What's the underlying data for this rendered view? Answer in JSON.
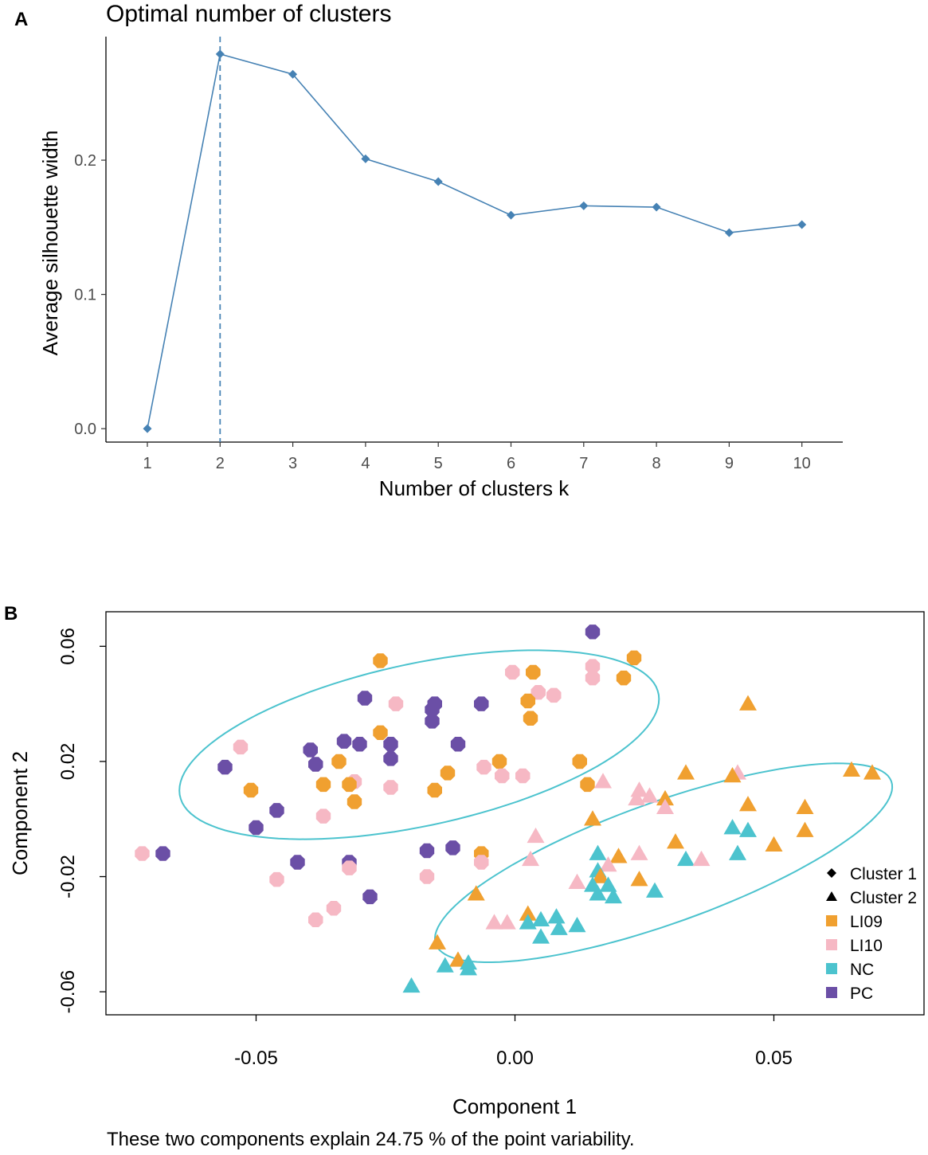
{
  "chart_data": [
    {
      "panel": "A",
      "type": "line",
      "title": "Optimal number of clusters",
      "xlabel": "Number of clusters k",
      "ylabel": "Average silhouette width",
      "categories": [
        "1",
        "2",
        "3",
        "4",
        "5",
        "6",
        "7",
        "8",
        "9",
        "10"
      ],
      "values": [
        0.0,
        0.279,
        0.264,
        0.201,
        0.184,
        0.159,
        0.166,
        0.165,
        0.146,
        0.152
      ],
      "yticks": [
        0.0,
        0.1,
        0.2
      ],
      "ytick_labels": [
        "0.0",
        "0.1",
        "0.2"
      ],
      "ylim": [
        -0.01,
        0.292
      ],
      "optimal_k": 2,
      "color": "#4682B4"
    },
    {
      "panel": "B",
      "type": "scatter",
      "xlabel": "Component 1",
      "ylabel": "Component 2",
      "caption": "These two components explain 24.75 % of the point variability.",
      "xlim": [
        -0.079,
        0.079
      ],
      "ylim": [
        -0.068,
        0.072
      ],
      "xticks": [
        -0.05,
        0.0,
        0.05
      ],
      "xtick_labels": [
        "-0.05",
        "0.00",
        "0.05"
      ],
      "yticks": [
        0.06,
        0.02,
        -0.02,
        -0.06
      ],
      "ytick_labels": [
        "0.06",
        "0.02",
        "-0.02",
        "-0.06"
      ],
      "legend_position": "right",
      "legend": [
        {
          "label": "Cluster 1",
          "symbol": "diamond"
        },
        {
          "label": "Cluster 2",
          "symbol": "triangle"
        },
        {
          "label": "LI09",
          "color": "#F0A030"
        },
        {
          "label": "LI10",
          "color": "#F6B8C4"
        },
        {
          "label": "NC",
          "color": "#4CC3CE"
        },
        {
          "label": "PC",
          "color": "#6B4FA6"
        }
      ],
      "groups": {
        "LI09": "#F0A030",
        "LI10": "#F6B8C4",
        "NC": "#4CC3CE",
        "PC": "#6B4FA6"
      },
      "ellipses": [
        {
          "cluster": "Cluster 1",
          "center": [
            -0.0185,
            0.0258
          ],
          "semi_axes": [
            0.0502,
            0.0265
          ],
          "angle_deg": 27,
          "color": "#4CC3CE"
        },
        {
          "cluster": "Cluster 2",
          "center": [
            0.0287,
            -0.0152
          ],
          "semi_axes": [
            0.0529,
            0.0186
          ],
          "angle_deg": 36,
          "color": "#4CC3CE"
        }
      ],
      "points": [
        {
          "x": 0.015,
          "y": 0.065,
          "group": "PC",
          "cluster": 1
        },
        {
          "x": -0.026,
          "y": 0.055,
          "group": "LI09",
          "cluster": 1
        },
        {
          "x": 0.023,
          "y": 0.056,
          "group": "LI09",
          "cluster": 1
        },
        {
          "x": 0.015,
          "y": 0.053,
          "group": "LI10",
          "cluster": 1
        },
        {
          "x": 0.015,
          "y": 0.049,
          "group": "LI10",
          "cluster": 1
        },
        {
          "x": 0.021,
          "y": 0.049,
          "group": "LI09",
          "cluster": 1
        },
        {
          "x": -0.0005,
          "y": 0.051,
          "group": "LI10",
          "cluster": 1
        },
        {
          "x": 0.0035,
          "y": 0.051,
          "group": "LI09",
          "cluster": 1
        },
        {
          "x": 0.0045,
          "y": 0.044,
          "group": "LI10",
          "cluster": 1
        },
        {
          "x": 0.0075,
          "y": 0.043,
          "group": "LI10",
          "cluster": 1
        },
        {
          "x": 0.0025,
          "y": 0.041,
          "group": "LI09",
          "cluster": 1
        },
        {
          "x": 0.003,
          "y": 0.035,
          "group": "LI09",
          "cluster": 1
        },
        {
          "x": -0.029,
          "y": 0.042,
          "group": "PC",
          "cluster": 1
        },
        {
          "x": -0.023,
          "y": 0.04,
          "group": "LI10",
          "cluster": 1
        },
        {
          "x": -0.0155,
          "y": 0.04,
          "group": "PC",
          "cluster": 1
        },
        {
          "x": -0.0065,
          "y": 0.04,
          "group": "PC",
          "cluster": 1
        },
        {
          "x": -0.016,
          "y": 0.038,
          "group": "PC",
          "cluster": 1
        },
        {
          "x": -0.016,
          "y": 0.034,
          "group": "PC",
          "cluster": 1
        },
        {
          "x": -0.026,
          "y": 0.03,
          "group": "LI09",
          "cluster": 1
        },
        {
          "x": -0.033,
          "y": 0.027,
          "group": "PC",
          "cluster": 1
        },
        {
          "x": -0.03,
          "y": 0.026,
          "group": "PC",
          "cluster": 1
        },
        {
          "x": -0.024,
          "y": 0.026,
          "group": "PC",
          "cluster": 1
        },
        {
          "x": -0.011,
          "y": 0.026,
          "group": "PC",
          "cluster": 1
        },
        {
          "x": -0.053,
          "y": 0.025,
          "group": "LI10",
          "cluster": 1
        },
        {
          "x": -0.0395,
          "y": 0.024,
          "group": "PC",
          "cluster": 1
        },
        {
          "x": -0.024,
          "y": 0.021,
          "group": "PC",
          "cluster": 1
        },
        {
          "x": -0.034,
          "y": 0.02,
          "group": "LI09",
          "cluster": 1
        },
        {
          "x": -0.0385,
          "y": 0.019,
          "group": "PC",
          "cluster": 1
        },
        {
          "x": -0.056,
          "y": 0.018,
          "group": "PC",
          "cluster": 1
        },
        {
          "x": -0.006,
          "y": 0.018,
          "group": "LI10",
          "cluster": 1
        },
        {
          "x": -0.003,
          "y": 0.02,
          "group": "LI09",
          "cluster": 1
        },
        {
          "x": 0.0125,
          "y": 0.02,
          "group": "LI09",
          "cluster": 1
        },
        {
          "x": -0.013,
          "y": 0.016,
          "group": "LI09",
          "cluster": 1
        },
        {
          "x": -0.0025,
          "y": 0.015,
          "group": "LI10",
          "cluster": 1
        },
        {
          "x": 0.0015,
          "y": 0.015,
          "group": "LI10",
          "cluster": 1
        },
        {
          "x": -0.031,
          "y": 0.013,
          "group": "LI10",
          "cluster": 1
        },
        {
          "x": -0.037,
          "y": 0.012,
          "group": "LI09",
          "cluster": 1
        },
        {
          "x": -0.032,
          "y": 0.012,
          "group": "LI09",
          "cluster": 1
        },
        {
          "x": -0.024,
          "y": 0.011,
          "group": "LI10",
          "cluster": 1
        },
        {
          "x": -0.0155,
          "y": 0.01,
          "group": "LI09",
          "cluster": 1
        },
        {
          "x": 0.014,
          "y": 0.012,
          "group": "LI09",
          "cluster": 1
        },
        {
          "x": -0.051,
          "y": 0.01,
          "group": "LI09",
          "cluster": 1
        },
        {
          "x": -0.031,
          "y": 0.006,
          "group": "LI09",
          "cluster": 1
        },
        {
          "x": -0.046,
          "y": 0.003,
          "group": "PC",
          "cluster": 1
        },
        {
          "x": -0.037,
          "y": 0.001,
          "group": "LI10",
          "cluster": 1
        },
        {
          "x": -0.05,
          "y": -0.003,
          "group": "PC",
          "cluster": 1
        },
        {
          "x": -0.072,
          "y": -0.012,
          "group": "LI10",
          "cluster": 1
        },
        {
          "x": -0.068,
          "y": -0.012,
          "group": "PC",
          "cluster": 1
        },
        {
          "x": -0.017,
          "y": -0.011,
          "group": "PC",
          "cluster": 1
        },
        {
          "x": -0.012,
          "y": -0.01,
          "group": "PC",
          "cluster": 1
        },
        {
          "x": -0.0065,
          "y": -0.012,
          "group": "LI09",
          "cluster": 1
        },
        {
          "x": -0.042,
          "y": -0.015,
          "group": "PC",
          "cluster": 1
        },
        {
          "x": -0.032,
          "y": -0.015,
          "group": "PC",
          "cluster": 1
        },
        {
          "x": -0.0065,
          "y": -0.015,
          "group": "LI10",
          "cluster": 1
        },
        {
          "x": -0.032,
          "y": -0.017,
          "group": "LI10",
          "cluster": 1
        },
        {
          "x": -0.046,
          "y": -0.021,
          "group": "LI10",
          "cluster": 1
        },
        {
          "x": -0.017,
          "y": -0.02,
          "group": "LI10",
          "cluster": 1
        },
        {
          "x": -0.028,
          "y": -0.027,
          "group": "PC",
          "cluster": 1
        },
        {
          "x": -0.035,
          "y": -0.031,
          "group": "LI10",
          "cluster": 1
        },
        {
          "x": -0.0385,
          "y": -0.035,
          "group": "LI10",
          "cluster": 1
        },
        {
          "x": 0.045,
          "y": 0.04,
          "group": "LI09",
          "cluster": 2
        },
        {
          "x": 0.065,
          "y": 0.017,
          "group": "LI09",
          "cluster": 2
        },
        {
          "x": 0.069,
          "y": 0.016,
          "group": "LI09",
          "cluster": 2
        },
        {
          "x": 0.033,
          "y": 0.016,
          "group": "LI09",
          "cluster": 2
        },
        {
          "x": 0.043,
          "y": 0.016,
          "group": "LI10",
          "cluster": 2
        },
        {
          "x": 0.042,
          "y": 0.015,
          "group": "LI09",
          "cluster": 2
        },
        {
          "x": 0.026,
          "y": 0.008,
          "group": "LI10",
          "cluster": 2
        },
        {
          "x": 0.017,
          "y": 0.013,
          "group": "LI10",
          "cluster": 2
        },
        {
          "x": 0.024,
          "y": 0.01,
          "group": "LI10",
          "cluster": 2
        },
        {
          "x": 0.0235,
          "y": 0.007,
          "group": "LI10",
          "cluster": 2
        },
        {
          "x": 0.029,
          "y": 0.007,
          "group": "LI09",
          "cluster": 2
        },
        {
          "x": 0.029,
          "y": 0.004,
          "group": "LI10",
          "cluster": 2
        },
        {
          "x": 0.045,
          "y": 0.005,
          "group": "LI09",
          "cluster": 2
        },
        {
          "x": 0.056,
          "y": 0.004,
          "group": "LI09",
          "cluster": 2
        },
        {
          "x": 0.015,
          "y": 0.0,
          "group": "LI09",
          "cluster": 2
        },
        {
          "x": 0.042,
          "y": -0.003,
          "group": "NC",
          "cluster": 2
        },
        {
          "x": 0.045,
          "y": -0.004,
          "group": "NC",
          "cluster": 2
        },
        {
          "x": 0.056,
          "y": -0.004,
          "group": "LI09",
          "cluster": 2
        },
        {
          "x": 0.004,
          "y": -0.006,
          "group": "LI10",
          "cluster": 2
        },
        {
          "x": 0.031,
          "y": -0.008,
          "group": "LI09",
          "cluster": 2
        },
        {
          "x": 0.05,
          "y": -0.009,
          "group": "LI09",
          "cluster": 2
        },
        {
          "x": 0.024,
          "y": -0.012,
          "group": "LI10",
          "cluster": 2
        },
        {
          "x": 0.016,
          "y": -0.012,
          "group": "NC",
          "cluster": 2
        },
        {
          "x": 0.02,
          "y": -0.013,
          "group": "LI09",
          "cluster": 2
        },
        {
          "x": 0.043,
          "y": -0.012,
          "group": "NC",
          "cluster": 2
        },
        {
          "x": 0.033,
          "y": -0.014,
          "group": "NC",
          "cluster": 2
        },
        {
          "x": 0.036,
          "y": -0.014,
          "group": "LI10",
          "cluster": 2
        },
        {
          "x": 0.003,
          "y": -0.014,
          "group": "LI10",
          "cluster": 2
        },
        {
          "x": 0.018,
          "y": -0.016,
          "group": "LI10",
          "cluster": 2
        },
        {
          "x": 0.016,
          "y": -0.018,
          "group": "NC",
          "cluster": 2
        },
        {
          "x": 0.0165,
          "y": -0.02,
          "group": "LI09",
          "cluster": 2
        },
        {
          "x": 0.024,
          "y": -0.021,
          "group": "LI09",
          "cluster": 2
        },
        {
          "x": 0.012,
          "y": -0.022,
          "group": "LI10",
          "cluster": 2
        },
        {
          "x": 0.015,
          "y": -0.023,
          "group": "NC",
          "cluster": 2
        },
        {
          "x": 0.018,
          "y": -0.023,
          "group": "NC",
          "cluster": 2
        },
        {
          "x": 0.027,
          "y": -0.025,
          "group": "NC",
          "cluster": 2
        },
        {
          "x": 0.016,
          "y": -0.026,
          "group": "NC",
          "cluster": 2
        },
        {
          "x": 0.019,
          "y": -0.027,
          "group": "NC",
          "cluster": 2
        },
        {
          "x": -0.0075,
          "y": -0.026,
          "group": "LI09",
          "cluster": 2
        },
        {
          "x": 0.0025,
          "y": -0.033,
          "group": "LI09",
          "cluster": 2
        },
        {
          "x": -0.004,
          "y": -0.036,
          "group": "LI10",
          "cluster": 2
        },
        {
          "x": -0.0015,
          "y": -0.036,
          "group": "LI10",
          "cluster": 2
        },
        {
          "x": 0.0025,
          "y": -0.036,
          "group": "NC",
          "cluster": 2
        },
        {
          "x": 0.005,
          "y": -0.035,
          "group": "NC",
          "cluster": 2
        },
        {
          "x": 0.008,
          "y": -0.034,
          "group": "NC",
          "cluster": 2
        },
        {
          "x": 0.012,
          "y": -0.037,
          "group": "NC",
          "cluster": 2
        },
        {
          "x": 0.0085,
          "y": -0.038,
          "group": "NC",
          "cluster": 2
        },
        {
          "x": 0.005,
          "y": -0.041,
          "group": "NC",
          "cluster": 2
        },
        {
          "x": -0.015,
          "y": -0.043,
          "group": "LI09",
          "cluster": 2
        },
        {
          "x": -0.011,
          "y": -0.049,
          "group": "LI09",
          "cluster": 2
        },
        {
          "x": -0.0135,
          "y": -0.051,
          "group": "NC",
          "cluster": 2
        },
        {
          "x": -0.009,
          "y": -0.05,
          "group": "NC",
          "cluster": 2
        },
        {
          "x": -0.009,
          "y": -0.052,
          "group": "NC",
          "cluster": 2
        },
        {
          "x": -0.02,
          "y": -0.058,
          "group": "NC",
          "cluster": 2
        }
      ]
    }
  ],
  "panels": {
    "a_label": "A",
    "b_label": "B"
  }
}
